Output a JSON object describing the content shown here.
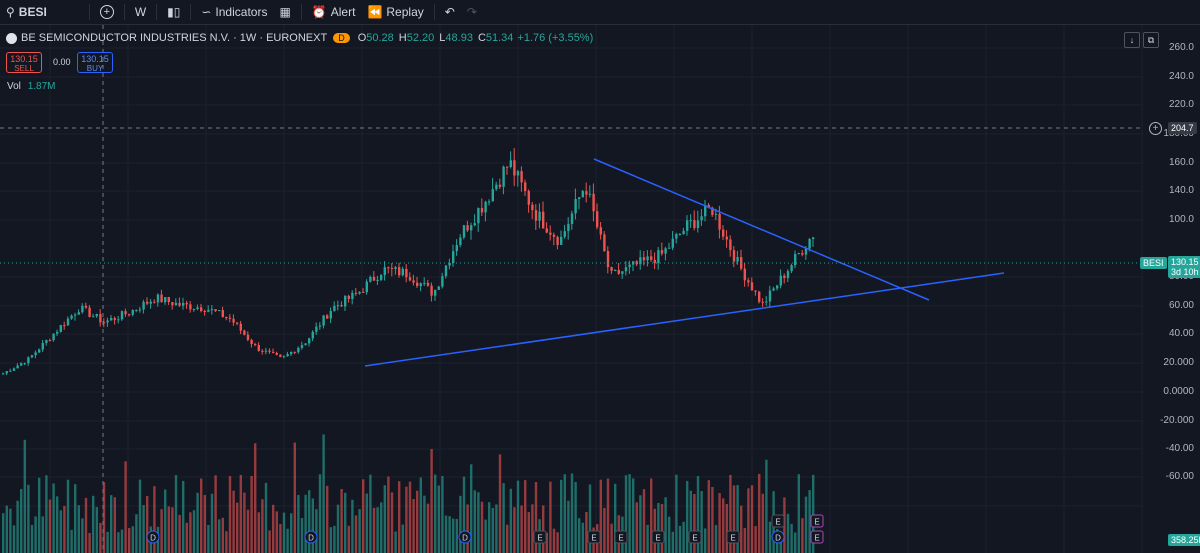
{
  "toolbar": {
    "symbol": "BESI",
    "interval": "W",
    "indicators_label": "Indicators",
    "alert_label": "Alert",
    "replay_label": "Replay"
  },
  "legend": {
    "title": "BE SEMICONDUCTOR INDUSTRIES N.V. · 1W · EURONEXT",
    "badge": "D",
    "o_label": "O",
    "o": "50.28",
    "h_label": "H",
    "h": "52.20",
    "l_label": "L",
    "l": "48.93",
    "c_label": "C",
    "c": "51.34",
    "change": "+1.76 (+3.55%)"
  },
  "trade": {
    "sell_price": "130.15",
    "sell_label": "SELL",
    "spread": "0.00",
    "buy_price": "130.15",
    "buy_label": "BUY"
  },
  "volume_legend": {
    "label": "Vol",
    "value": "1.87M"
  },
  "price_axis": [
    "260.0",
    "240.0",
    "220.0",
    "180.00",
    "160.0",
    "140.0",
    "100.0",
    "80.00",
    "60.00",
    "40.00",
    "20.000",
    "0.0000",
    "-20.000",
    "-40.00",
    "-60.00"
  ],
  "crosshair_price": "204.7",
  "last_price": {
    "symbol": "BESI",
    "value": "130.15",
    "countdown": "3d 10h"
  },
  "volume_axis_label": "358.25K",
  "colors": {
    "background": "#131722",
    "up": "#26a69a",
    "down": "#ef5350",
    "trendline": "#2962ff"
  },
  "event_markers": [
    "D",
    "D",
    "D",
    "E",
    "E",
    "E",
    "E",
    "E",
    "E",
    "E",
    "D",
    "E",
    "E"
  ],
  "chart_data": {
    "type": "candlestick",
    "interval": "W",
    "price_range": [
      -60,
      260
    ],
    "approx_close_path": [
      {
        "x": "start",
        "y": 32
      },
      {
        "y": 42
      },
      {
        "y": 60
      },
      {
        "y": 78
      },
      {
        "y": 68
      },
      {
        "y": 75
      },
      {
        "y": 85
      },
      {
        "y": 80
      },
      {
        "y": 78
      },
      {
        "y": 70
      },
      {
        "y": 50
      },
      {
        "y": 42
      },
      {
        "y": 55
      },
      {
        "y": 78
      },
      {
        "y": 88
      },
      {
        "y": 105
      },
      {
        "y": 102
      },
      {
        "y": 88
      },
      {
        "y": 128
      },
      {
        "y": 152
      },
      {
        "y": 180
      },
      {
        "y": 145
      },
      {
        "y": 125
      },
      {
        "y": 165
      },
      {
        "y": 100
      },
      {
        "y": 108
      },
      {
        "y": 115
      },
      {
        "y": 135
      },
      {
        "y": 148
      },
      {
        "y": 110
      },
      {
        "y": 80
      },
      {
        "y": 105
      },
      {
        "y": 130
      }
    ],
    "trendlines": [
      "descending resistance from ~182 to ~103",
      "ascending support from ~38 to ~103"
    ]
  }
}
